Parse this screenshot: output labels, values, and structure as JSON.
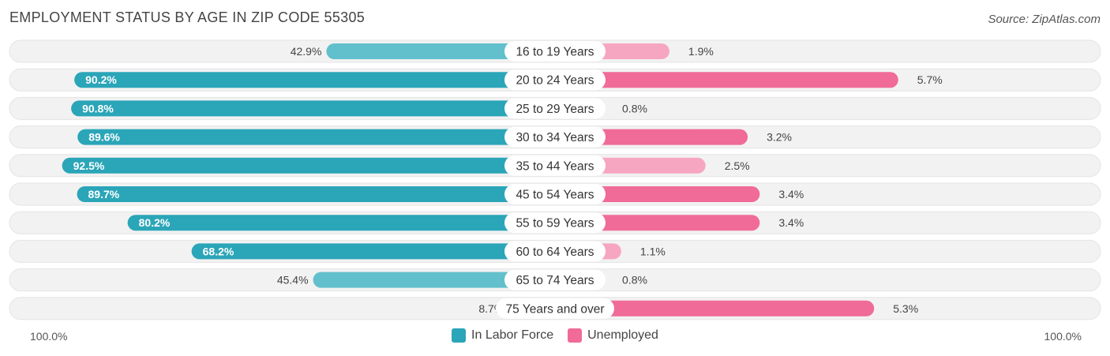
{
  "title": "EMPLOYMENT STATUS BY AGE IN ZIP CODE 55305",
  "source": "Source: ZipAtlas.com",
  "axis": {
    "left_label": "100.0%",
    "right_label": "100.0%"
  },
  "legend": [
    {
      "label": "In Labor Force",
      "color": "#2ba5b8"
    },
    {
      "label": "Unemployed",
      "color": "#f06b98"
    }
  ],
  "colors": {
    "labor_strong": "#2ba5b8",
    "labor_light": "#62bfcc",
    "unemployed_strong": "#f06b98",
    "unemployed_light": "#f7a6c1",
    "row_background": "#f2f2f2"
  },
  "chart_data": {
    "type": "bar",
    "orientation": "horizontal-diverging",
    "categories": [
      "16 to 19 Years",
      "20 to 24 Years",
      "25 to 29 Years",
      "30 to 34 Years",
      "35 to 44 Years",
      "45 to 54 Years",
      "55 to 59 Years",
      "60 to 64 Years",
      "65 to 74 Years",
      "75 Years and over"
    ],
    "series": [
      {
        "name": "In Labor Force",
        "values": [
          42.9,
          90.2,
          90.8,
          89.6,
          92.5,
          89.7,
          80.2,
          68.2,
          45.4,
          8.7
        ],
        "labels": [
          "42.9%",
          "90.2%",
          "90.8%",
          "89.6%",
          "92.5%",
          "89.7%",
          "80.2%",
          "68.2%",
          "45.4%",
          "8.7%"
        ]
      },
      {
        "name": "Unemployed",
        "values": [
          1.9,
          5.7,
          0.8,
          3.2,
          2.5,
          3.4,
          3.4,
          1.1,
          0.8,
          5.3
        ],
        "labels": [
          "1.9%",
          "5.7%",
          "0.8%",
          "3.2%",
          "2.5%",
          "3.4%",
          "3.4%",
          "1.1%",
          "0.8%",
          "5.3%"
        ]
      }
    ],
    "xlim_left": [
      0,
      100
    ],
    "xlim_right": [
      0,
      100
    ],
    "legend_position": "bottom-center"
  }
}
